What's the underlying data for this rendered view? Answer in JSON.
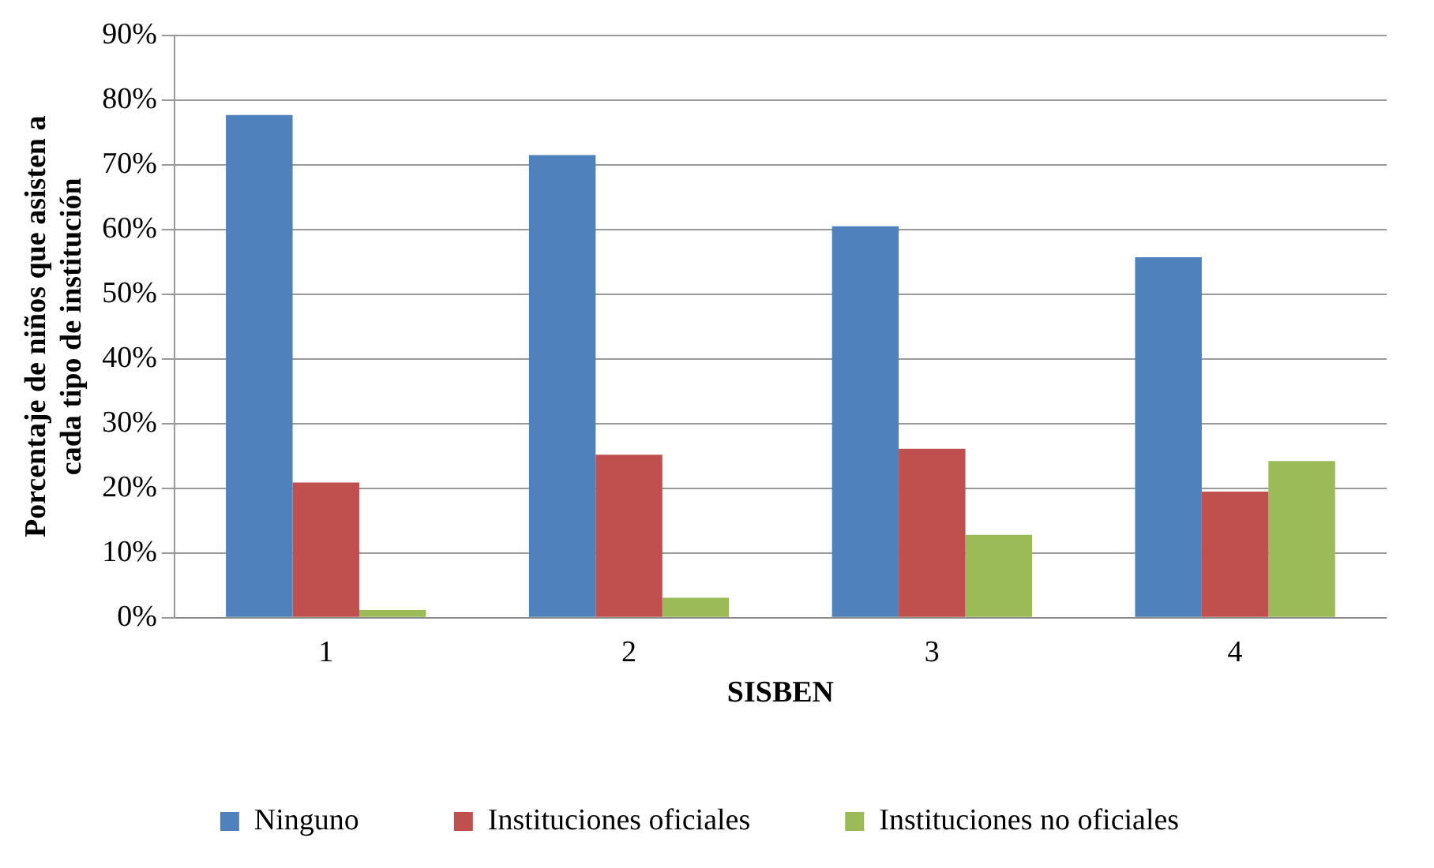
{
  "chart_data": {
    "type": "bar",
    "xlabel": "SISBEN",
    "ylabel": "Porcentaje de niños que asisten a cada tipo de institución",
    "categories": [
      "1",
      "2",
      "3",
      "4"
    ],
    "series": [
      {
        "name": "Ninguno",
        "color": "#4f81bd",
        "values": [
          77.7,
          71.5,
          60.5,
          55.7
        ]
      },
      {
        "name": "Instituciones oficiales",
        "color": "#c0504d",
        "values": [
          20.9,
          25.2,
          26.1,
          19.5
        ]
      },
      {
        "name": "Instituciones no oficiales",
        "color": "#9bbb59",
        "values": [
          1.2,
          3.1,
          12.8,
          24.2
        ]
      }
    ],
    "ylim": [
      0,
      90
    ],
    "yticks": [
      {
        "value": 0,
        "label": "0%"
      },
      {
        "value": 10,
        "label": "10%"
      },
      {
        "value": 20,
        "label": "20%"
      },
      {
        "value": 30,
        "label": "30%"
      },
      {
        "value": 40,
        "label": "40%"
      },
      {
        "value": 50,
        "label": "50%"
      },
      {
        "value": 60,
        "label": "60%"
      },
      {
        "value": 70,
        "label": "70%"
      },
      {
        "value": 80,
        "label": "80%"
      },
      {
        "value": 90,
        "label": "90%"
      }
    ],
    "grid": "y",
    "legend": "bottom"
  }
}
